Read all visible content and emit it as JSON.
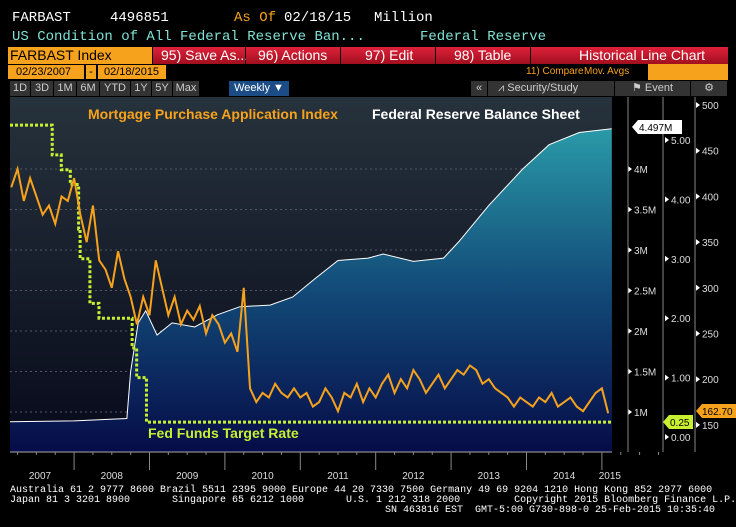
{
  "header": {
    "ticker": "FARBAST",
    "value": "4496851",
    "as_of_label": "As Of",
    "as_of_date": "02/18/15",
    "units": "Million",
    "description": "US Condition of All Federal Reserve Ban...",
    "source": "Federal Reserve"
  },
  "toolbar": {
    "security": "FARBAST Index",
    "save": "95) Save As...",
    "actions": "96) Actions",
    "edit": "97) Edit",
    "table": "98) Table",
    "chart_type": "Historical Line Chart"
  },
  "dates": {
    "start": "02/23/2007",
    "sep": "-",
    "end": "02/18/2015",
    "compare": "11) Compare",
    "mov_avgs": "Mov. Avgs"
  },
  "periods": [
    "1D",
    "3D",
    "1M",
    "6M",
    "YTD",
    "1Y",
    "5Y",
    "Max"
  ],
  "frequency": "Weekly ▼",
  "right_tools": {
    "collapse": "«",
    "security_study": "Security/Study",
    "event": "Event",
    "settings": "⚙"
  },
  "footer": {
    "line1": "Australia 61 2 9777 8600 Brazil 5511 2395 9000 Europe 44 20 7330 7500 Germany 49 69 9204 1210 Hong Kong 852 2977 6000",
    "line2": "Japan 81 3 3201 8900       Singapore 65 6212 1000       U.S. 1 212 318 2000         Copyright 2015 Bloomberg Finance L.P.",
    "line3": "SN 463816 EST  GMT-5:00 G730-898-0 25-Feb-2015 10:35:40"
  },
  "chart_data": {
    "type": "line",
    "title": "Federal Reserve Balance Sheet",
    "x_ticks": [
      "2007",
      "2008",
      "2009",
      "2010",
      "2011",
      "2012",
      "2013",
      "2014",
      "2015"
    ],
    "xlim": [
      2007.15,
      2015.13
    ],
    "series": [
      {
        "name": "Federal Reserve Balance Sheet",
        "axis": "M",
        "color": "#ffffff",
        "last_label": "4.497M",
        "points": [
          [
            2007.15,
            0.88
          ],
          [
            2008.0,
            0.89
          ],
          [
            2008.7,
            0.92
          ],
          [
            2008.75,
            1.5
          ],
          [
            2008.85,
            2.1
          ],
          [
            2008.95,
            2.25
          ],
          [
            2009.1,
            1.95
          ],
          [
            2009.3,
            2.1
          ],
          [
            2009.6,
            2.05
          ],
          [
            2009.9,
            2.2
          ],
          [
            2010.2,
            2.3
          ],
          [
            2010.6,
            2.32
          ],
          [
            2010.9,
            2.42
          ],
          [
            2011.2,
            2.65
          ],
          [
            2011.5,
            2.87
          ],
          [
            2011.9,
            2.9
          ],
          [
            2012.1,
            2.95
          ],
          [
            2012.5,
            2.86
          ],
          [
            2012.9,
            2.9
          ],
          [
            2013.1,
            3.1
          ],
          [
            2013.5,
            3.55
          ],
          [
            2013.95,
            4.0
          ],
          [
            2014.3,
            4.3
          ],
          [
            2014.7,
            4.45
          ],
          [
            2015.13,
            4.497
          ]
        ]
      },
      {
        "name": "Mortgage Purchase Application Index",
        "axis": "MPA",
        "color": "#f7a21c",
        "last_label": "162.70",
        "start": "2007-03",
        "frequency": "monthly",
        "values": [
          410,
          430,
          395,
          420,
          400,
          380,
          390,
          370,
          400,
          395,
          420,
          380,
          350,
          390,
          330,
          320,
          300,
          340,
          310,
          290,
          260,
          290,
          270,
          330,
          300,
          270,
          290,
          260,
          275,
          265,
          280,
          250,
          270,
          260,
          240,
          250,
          230,
          300,
          190,
          175,
          185,
          180,
          195,
          185,
          180,
          190,
          180,
          185,
          170,
          175,
          190,
          180,
          165,
          185,
          180,
          195,
          175,
          190,
          180,
          195,
          205,
          185,
          200,
          190,
          210,
          200,
          185,
          195,
          205,
          190,
          200,
          210,
          205,
          215,
          210,
          195,
          200,
          190,
          185,
          180,
          170,
          180,
          175,
          170,
          180,
          175,
          185,
          170,
          175,
          180,
          170,
          165,
          175,
          185,
          190,
          162.7
        ]
      },
      {
        "name": "Fed Funds Target Rate",
        "axis": "FF",
        "color": "#c8f030",
        "last_label": "0.25",
        "points": [
          [
            2007.15,
            5.25
          ],
          [
            2007.71,
            5.25
          ],
          [
            2007.71,
            4.75
          ],
          [
            2007.83,
            4.75
          ],
          [
            2007.83,
            4.5
          ],
          [
            2007.95,
            4.5
          ],
          [
            2007.95,
            4.25
          ],
          [
            2008.06,
            4.25
          ],
          [
            2008.06,
            3.5
          ],
          [
            2008.08,
            3.5
          ],
          [
            2008.08,
            3.0
          ],
          [
            2008.21,
            3.0
          ],
          [
            2008.21,
            2.25
          ],
          [
            2008.33,
            2.25
          ],
          [
            2008.33,
            2.0
          ],
          [
            2008.77,
            2.0
          ],
          [
            2008.77,
            1.5
          ],
          [
            2008.83,
            1.5
          ],
          [
            2008.83,
            1.0
          ],
          [
            2008.96,
            1.0
          ],
          [
            2008.96,
            0.25
          ],
          [
            2015.13,
            0.25
          ]
        ]
      }
    ],
    "axes": {
      "M": {
        "ticks": [
          "1M",
          "1.5M",
          "2M",
          "2.5M",
          "3M",
          "3.5M",
          "4M"
        ],
        "values": [
          1,
          1.5,
          2,
          2.5,
          3,
          3.5,
          4
        ]
      },
      "FF": {
        "ticks": [
          "0.00",
          "1.00",
          "2.00",
          "3.00",
          "4.00",
          "5.00"
        ],
        "values": [
          0,
          1,
          2,
          3,
          4,
          5
        ]
      },
      "MPA": {
        "ticks": [
          "150",
          "200",
          "250",
          "300",
          "350",
          "400",
          "450",
          "500"
        ],
        "values": [
          150,
          200,
          250,
          300,
          350,
          400,
          450,
          500
        ]
      }
    }
  }
}
